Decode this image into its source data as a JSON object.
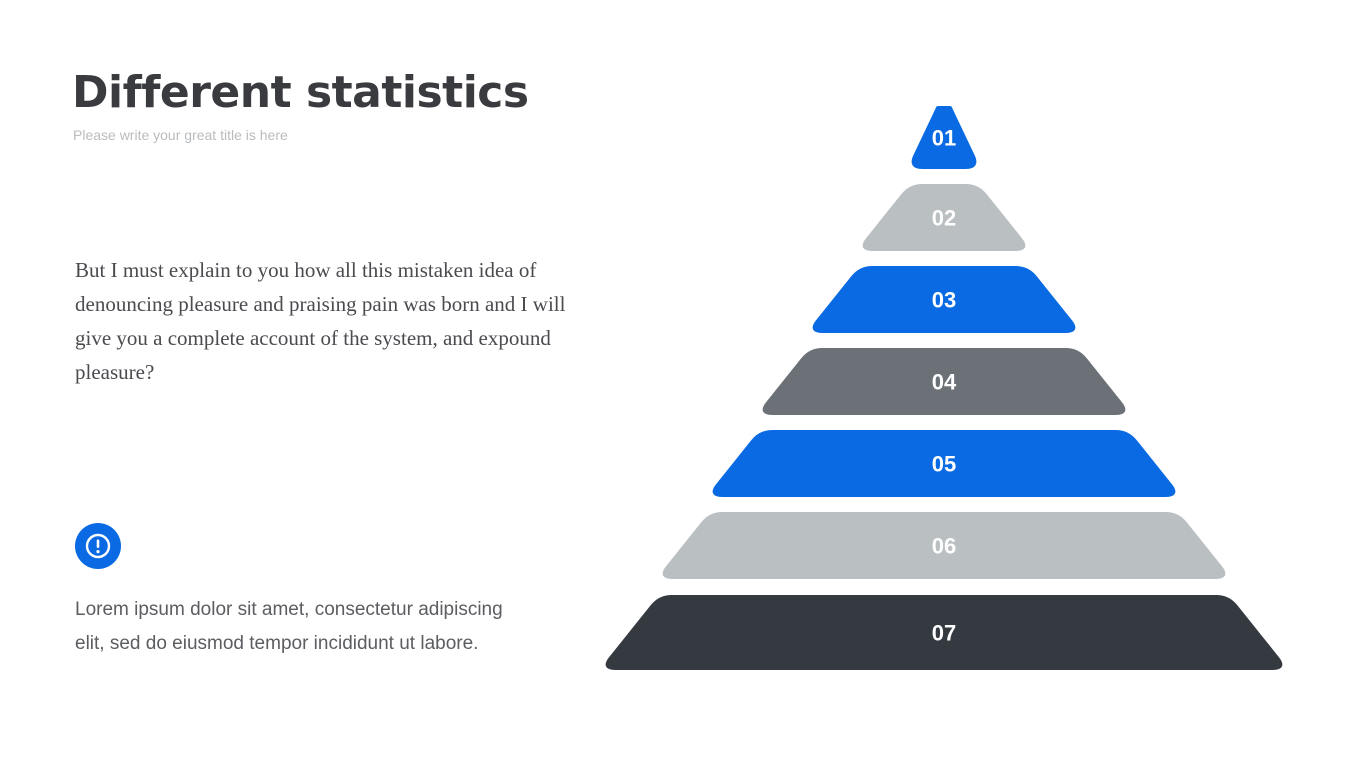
{
  "header": {
    "title": "Different statistics",
    "subtitle": "Please write your great title is here"
  },
  "main": {
    "paragraph": "But I must explain to you how all this mistaken idea of denouncing pleasure and praising pain was born and I will give you a complete account of the system, and expound pleasure?"
  },
  "note": {
    "icon": "info-exclamation-icon",
    "text": "Lorem ipsum dolor sit amet, consectetur adipiscing elit, sed do eiusmod tempor incididunt ut labore."
  },
  "pyramid": {
    "levels": [
      {
        "label": "01",
        "color": "#0a6ae3"
      },
      {
        "label": "02",
        "color": "#babfc2"
      },
      {
        "label": "03",
        "color": "#0a6ae3"
      },
      {
        "label": "04",
        "color": "#6c7177"
      },
      {
        "label": "05",
        "color": "#0a6ae3"
      },
      {
        "label": "06",
        "color": "#babfc2"
      },
      {
        "label": "07",
        "color": "#353a41"
      }
    ]
  }
}
